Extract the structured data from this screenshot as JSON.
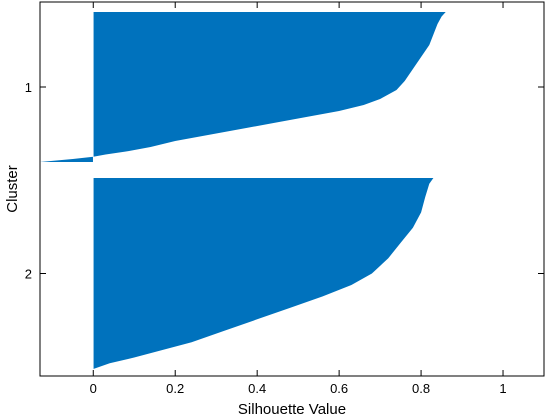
{
  "chart_data": {
    "type": "bar",
    "orientation": "horizontal",
    "xlabel": "Silhouette Value",
    "ylabel": "Cluster",
    "xlim": [
      -0.13,
      1.1
    ],
    "xticks": [
      "0",
      "0.2",
      "0.4",
      "0.6",
      "0.8",
      "1"
    ],
    "xtick_values": [
      0,
      0.2,
      0.4,
      0.6,
      0.8,
      1
    ],
    "color": "#0072BD",
    "clusters": [
      {
        "label": "1",
        "profile": [
          [
            0.0,
            0.86
          ],
          [
            0.03,
            0.85
          ],
          [
            0.08,
            0.84
          ],
          [
            0.15,
            0.83
          ],
          [
            0.22,
            0.82
          ],
          [
            0.3,
            0.8
          ],
          [
            0.38,
            0.78
          ],
          [
            0.46,
            0.76
          ],
          [
            0.52,
            0.74
          ],
          [
            0.58,
            0.7
          ],
          [
            0.62,
            0.66
          ],
          [
            0.66,
            0.6
          ],
          [
            0.7,
            0.52
          ],
          [
            0.74,
            0.44
          ],
          [
            0.78,
            0.36
          ],
          [
            0.82,
            0.28
          ],
          [
            0.86,
            0.2
          ],
          [
            0.9,
            0.14
          ],
          [
            0.93,
            0.08
          ],
          [
            0.95,
            0.03
          ],
          [
            0.965,
            0.0
          ],
          [
            0.98,
            -0.05
          ],
          [
            1.0,
            -0.13
          ]
        ]
      },
      {
        "label": "2",
        "profile": [
          [
            0.0,
            0.83
          ],
          [
            0.03,
            0.82
          ],
          [
            0.1,
            0.81
          ],
          [
            0.18,
            0.8
          ],
          [
            0.26,
            0.78
          ],
          [
            0.34,
            0.75
          ],
          [
            0.42,
            0.72
          ],
          [
            0.5,
            0.68
          ],
          [
            0.56,
            0.63
          ],
          [
            0.62,
            0.56
          ],
          [
            0.68,
            0.48
          ],
          [
            0.74,
            0.4
          ],
          [
            0.8,
            0.32
          ],
          [
            0.86,
            0.24
          ],
          [
            0.9,
            0.17
          ],
          [
            0.94,
            0.1
          ],
          [
            0.97,
            0.04
          ],
          [
            1.0,
            0.0
          ]
        ]
      }
    ]
  }
}
